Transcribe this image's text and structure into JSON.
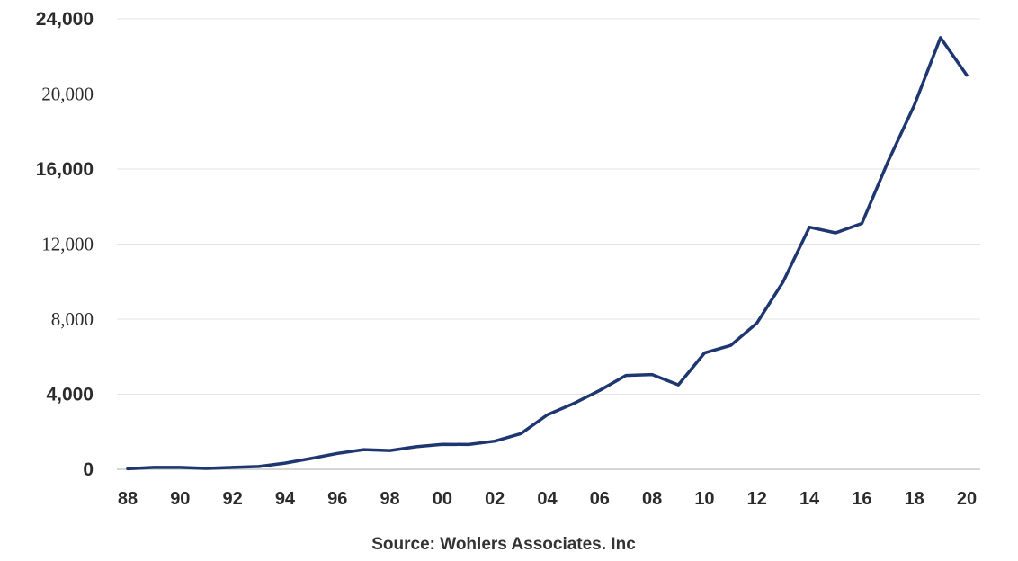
{
  "chart_data": {
    "type": "line",
    "x": [
      1988,
      1989,
      1990,
      1991,
      1992,
      1993,
      1994,
      1995,
      1996,
      1997,
      1998,
      1999,
      2000,
      2001,
      2002,
      2003,
      2004,
      2005,
      2006,
      2007,
      2008,
      2009,
      2010,
      2011,
      2012,
      2013,
      2014,
      2015,
      2016,
      2017,
      2018,
      2019,
      2020
    ],
    "series": [
      {
        "values": [
          30,
          100,
          100,
          50,
          100,
          150,
          330,
          580,
          850,
          1050,
          1000,
          1200,
          1330,
          1320,
          1500,
          1900,
          2900,
          3500,
          4200,
          5000,
          5050,
          4500,
          6200,
          6600,
          7800,
          10000,
          12900,
          12600,
          13100,
          16400,
          19400,
          23000,
          21000
        ],
        "color": "#1f3770"
      }
    ],
    "x_tick_labels": [
      "88",
      "90",
      "92",
      "94",
      "96",
      "98",
      "00",
      "02",
      "04",
      "06",
      "08",
      "10",
      "12",
      "14",
      "16",
      "18",
      "20"
    ],
    "x_tick_values": [
      1988,
      1990,
      1992,
      1994,
      1996,
      1998,
      2000,
      2002,
      2004,
      2006,
      2008,
      2010,
      2012,
      2014,
      2016,
      2018,
      2020
    ],
    "y_ticks": [
      {
        "value": 0,
        "label": "0"
      },
      {
        "value": 4000,
        "label": "4,000"
      },
      {
        "value": 8000,
        "label": "8,000"
      },
      {
        "value": 12000,
        "label": "12,000"
      },
      {
        "value": 16000,
        "label": "16,000"
      },
      {
        "value": 20000,
        "label": "20,000"
      },
      {
        "value": 24000,
        "label": "24,000"
      }
    ],
    "bold_y_ticks": [
      0,
      4000,
      16000,
      24000
    ],
    "xlim": [
      1988,
      2020
    ],
    "ylim": [
      0,
      24000
    ],
    "grid": "horizontal",
    "title": "",
    "xlabel": "",
    "ylabel": "",
    "grid_color": "#e4e4e4",
    "axis_color": "#c8c8c8"
  },
  "source_note": "Source: Wohlers Associates. Inc"
}
